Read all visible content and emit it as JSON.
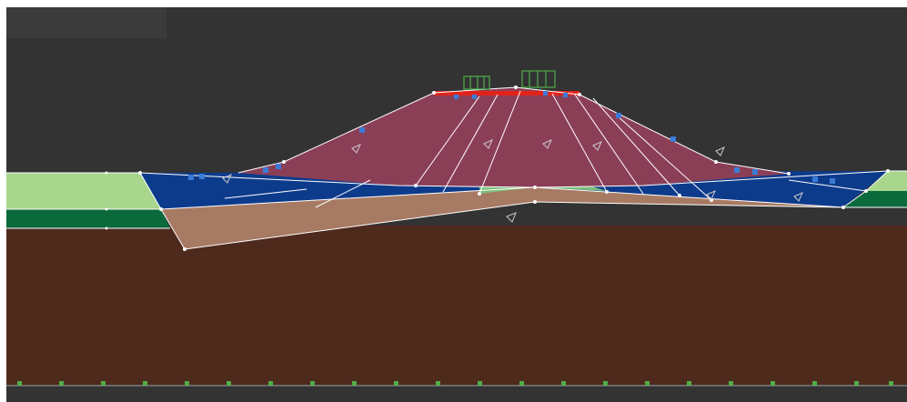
{
  "viewport": {
    "tab_label": "",
    "colors": {
      "background": "#333333",
      "embankment": "#8b3f57",
      "water_layer": "#0d3b8c",
      "foundation_clay": "#a77a63",
      "deep_soil": "#4e2a1d",
      "grass_light": "#a7d68c",
      "grass_dark": "#0a6a3c",
      "mesh_line": "#ffffff",
      "fixity_green": "#4fae48",
      "load_red": "#e2231a",
      "node_blue": "#3b7bd8"
    },
    "icons": {
      "material_markers": "polygon-material-icon",
      "boundary_supports": "support-fixity-icon",
      "crest_loads": "distributed-load-icon"
    }
  }
}
